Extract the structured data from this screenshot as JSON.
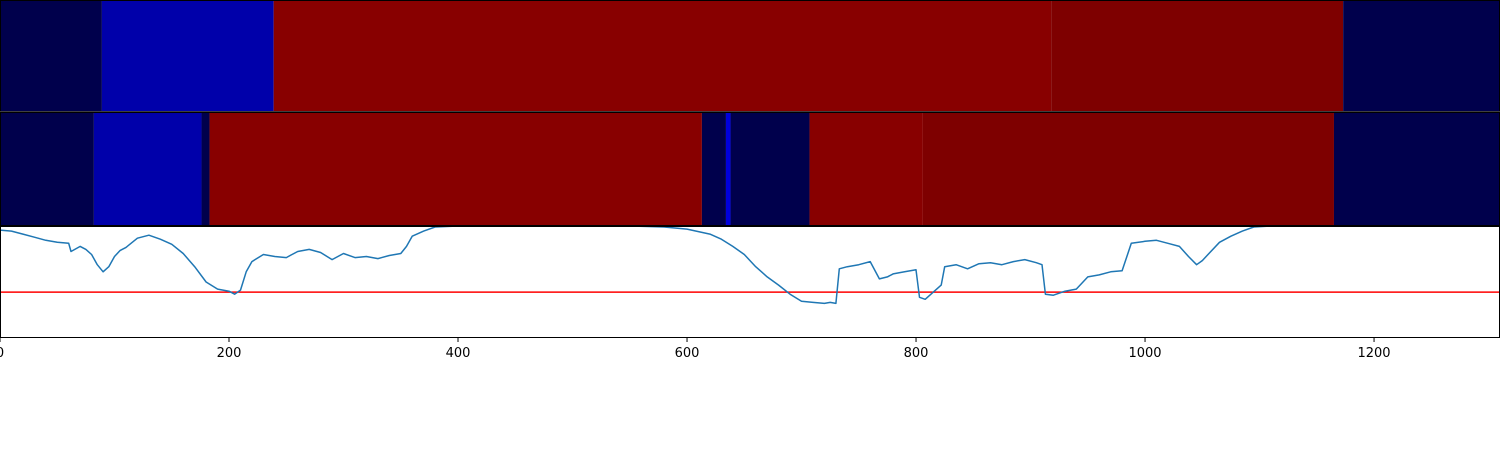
{
  "chart_data": [
    {
      "type": "heatmap",
      "panel": "top",
      "segments": [
        {
          "start": 0,
          "end": 89,
          "color": "#00004c"
        },
        {
          "start": 89,
          "end": 239,
          "color": "#0000aa"
        },
        {
          "start": 239,
          "end": 918,
          "color": "#880000"
        },
        {
          "start": 918,
          "end": 1173,
          "color": "#7e0000"
        },
        {
          "start": 1173,
          "end": 1310,
          "color": "#00004c"
        }
      ]
    },
    {
      "type": "heatmap",
      "panel": "middle",
      "segments": [
        {
          "start": 0,
          "end": 82,
          "color": "#00004c"
        },
        {
          "start": 82,
          "end": 176,
          "color": "#0000aa"
        },
        {
          "start": 176,
          "end": 183,
          "color": "#00004c"
        },
        {
          "start": 183,
          "end": 613,
          "color": "#880000"
        },
        {
          "start": 613,
          "end": 634,
          "color": "#00004c"
        },
        {
          "start": 634,
          "end": 638,
          "color": "#0000dd"
        },
        {
          "start": 638,
          "end": 707,
          "color": "#00004c"
        },
        {
          "start": 707,
          "end": 806,
          "color": "#880000"
        },
        {
          "start": 806,
          "end": 1165,
          "color": "#7e0000"
        },
        {
          "start": 1165,
          "end": 1310,
          "color": "#00004c"
        }
      ]
    },
    {
      "type": "line",
      "panel": "bottom",
      "xlim": [
        0,
        1310
      ],
      "ylim": [
        -0.1,
        1.0
      ],
      "x_ticks": [
        0,
        200,
        400,
        600,
        800,
        1000,
        1200
      ],
      "x_tick_labels": [
        "0",
        "200",
        "400",
        "600",
        "800",
        "1000",
        "1200"
      ],
      "threshold": {
        "value": 0.35,
        "color": "#ff0000"
      },
      "series": [
        {
          "color": "#1f77b4",
          "points": [
            [
              0,
              0.96
            ],
            [
              10,
              0.95
            ],
            [
              20,
              0.92
            ],
            [
              30,
              0.89
            ],
            [
              40,
              0.86
            ],
            [
              50,
              0.84
            ],
            [
              60,
              0.83
            ],
            [
              62,
              0.75
            ],
            [
              70,
              0.8
            ],
            [
              75,
              0.77
            ],
            [
              80,
              0.72
            ],
            [
              85,
              0.62
            ],
            [
              90,
              0.55
            ],
            [
              95,
              0.6
            ],
            [
              100,
              0.7
            ],
            [
              105,
              0.76
            ],
            [
              110,
              0.79
            ],
            [
              120,
              0.88
            ],
            [
              130,
              0.91
            ],
            [
              140,
              0.87
            ],
            [
              150,
              0.82
            ],
            [
              160,
              0.73
            ],
            [
              170,
              0.6
            ],
            [
              180,
              0.45
            ],
            [
              190,
              0.38
            ],
            [
              200,
              0.36
            ],
            [
              205,
              0.33
            ],
            [
              210,
              0.37
            ],
            [
              215,
              0.55
            ],
            [
              220,
              0.65
            ],
            [
              230,
              0.72
            ],
            [
              240,
              0.7
            ],
            [
              250,
              0.69
            ],
            [
              255,
              0.72
            ],
            [
              260,
              0.75
            ],
            [
              270,
              0.77
            ],
            [
              280,
              0.74
            ],
            [
              290,
              0.67
            ],
            [
              300,
              0.73
            ],
            [
              310,
              0.69
            ],
            [
              320,
              0.7
            ],
            [
              330,
              0.68
            ],
            [
              340,
              0.71
            ],
            [
              350,
              0.73
            ],
            [
              355,
              0.8
            ],
            [
              360,
              0.9
            ],
            [
              370,
              0.95
            ],
            [
              380,
              0.99
            ],
            [
              400,
              1.0
            ],
            [
              450,
              1.0
            ],
            [
              500,
              1.0
            ],
            [
              550,
              1.0
            ],
            [
              580,
              0.99
            ],
            [
              600,
              0.97
            ],
            [
              620,
              0.92
            ],
            [
              630,
              0.87
            ],
            [
              640,
              0.8
            ],
            [
              650,
              0.72
            ],
            [
              660,
              0.6
            ],
            [
              670,
              0.5
            ],
            [
              680,
              0.42
            ],
            [
              690,
              0.33
            ],
            [
              700,
              0.26
            ],
            [
              710,
              0.25
            ],
            [
              720,
              0.24
            ],
            [
              725,
              0.25
            ],
            [
              730,
              0.24
            ],
            [
              733,
              0.58
            ],
            [
              740,
              0.6
            ],
            [
              750,
              0.62
            ],
            [
              760,
              0.65
            ],
            [
              768,
              0.48
            ],
            [
              775,
              0.5
            ],
            [
              780,
              0.53
            ],
            [
              790,
              0.55
            ],
            [
              800,
              0.57
            ],
            [
              803,
              0.3
            ],
            [
              808,
              0.28
            ],
            [
              815,
              0.35
            ],
            [
              822,
              0.42
            ],
            [
              825,
              0.6
            ],
            [
              835,
              0.62
            ],
            [
              845,
              0.58
            ],
            [
              855,
              0.63
            ],
            [
              865,
              0.64
            ],
            [
              875,
              0.62
            ],
            [
              885,
              0.65
            ],
            [
              895,
              0.67
            ],
            [
              905,
              0.64
            ],
            [
              910,
              0.62
            ],
            [
              913,
              0.33
            ],
            [
              920,
              0.32
            ],
            [
              930,
              0.36
            ],
            [
              940,
              0.38
            ],
            [
              950,
              0.5
            ],
            [
              960,
              0.52
            ],
            [
              970,
              0.55
            ],
            [
              980,
              0.56
            ],
            [
              988,
              0.83
            ],
            [
              1000,
              0.85
            ],
            [
              1010,
              0.86
            ],
            [
              1020,
              0.83
            ],
            [
              1030,
              0.8
            ],
            [
              1038,
              0.7
            ],
            [
              1045,
              0.62
            ],
            [
              1050,
              0.66
            ],
            [
              1055,
              0.72
            ],
            [
              1065,
              0.84
            ],
            [
              1075,
              0.9
            ],
            [
              1085,
              0.95
            ],
            [
              1095,
              0.99
            ],
            [
              1110,
              1.0
            ],
            [
              1200,
              1.0
            ],
            [
              1250,
              1.0
            ],
            [
              1300,
              1.0
            ],
            [
              1310,
              1.0
            ]
          ]
        }
      ]
    }
  ]
}
